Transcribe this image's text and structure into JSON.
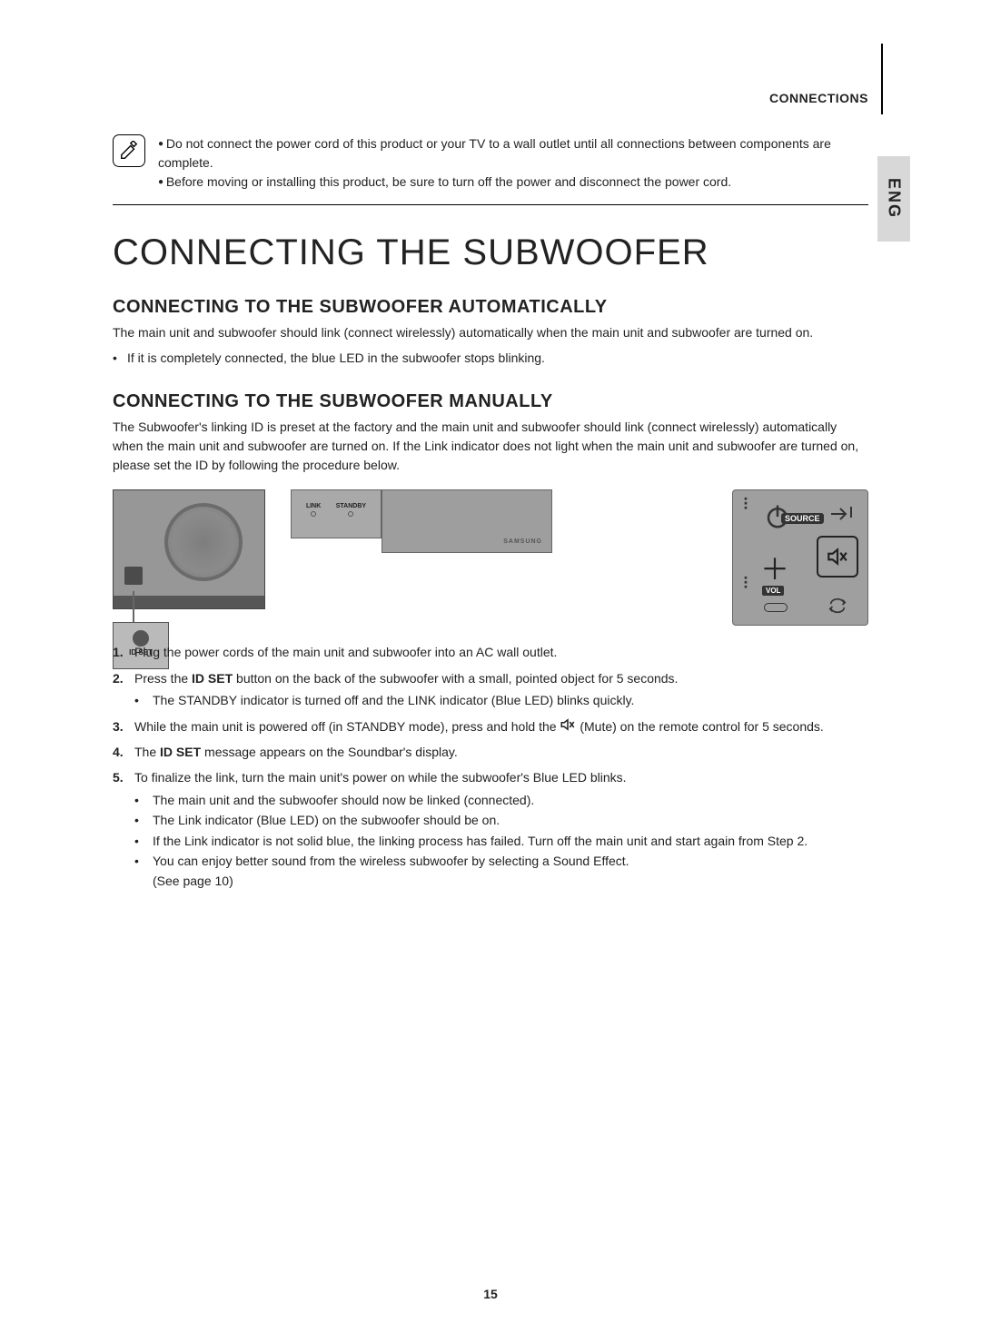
{
  "section_label": "CONNECTIONS",
  "side_tab": "ENG",
  "note_icon_name": "pencil-note-icon",
  "notes": [
    "Do not connect the power cord of this product or your TV to a wall outlet until all connections between components are complete.",
    "Before moving or installing this product, be sure to turn off the power and disconnect the power cord."
  ],
  "title": "CONNECTING THE SUBWOOFER",
  "auto_heading": "CONNECTING TO THE SUBWOOFER AUTOMATICALLY",
  "auto_body": "The main unit and subwoofer should link (connect wirelessly) automatically when the main unit and subwoofer are turned on.",
  "auto_bullets": [
    "If it is completely connected, the blue LED in the subwoofer stops blinking."
  ],
  "manual_heading": "CONNECTING TO THE SUBWOOFER MANUALLY",
  "manual_body": "The Subwoofer's linking ID is preset at the factory and the main unit and subwoofer should link (connect wirelessly) automatically when the main unit and subwoofer are turned on. If the Link indicator does not light when the main unit and subwoofer are turned on, please set the ID by following the procedure below.",
  "figures": {
    "subwoofer": {
      "callout_label": "ID SET"
    },
    "soundbar_panel": {
      "link_label": "LINK",
      "standby_label": "STANDBY",
      "brand": "SAMSUNG"
    },
    "remote": {
      "source_label": "SOURCE",
      "vol_label": "VOL"
    }
  },
  "steps": [
    {
      "text": "Plug the power cords of the main unit and subwoofer into an AC wall outlet."
    },
    {
      "prefix": "Press the ",
      "bold": "ID SET",
      "suffix": " button on the back of the subwoofer with a small, pointed object for 5 seconds.",
      "sub": [
        "The STANDBY indicator is turned off and the LINK indicator (Blue LED) blinks quickly."
      ]
    },
    {
      "prefix": "While the main unit is powered off (in STANDBY mode), press and hold the ",
      "icon": "mute-icon",
      "icon_after": " (Mute) on the remote control for 5 seconds."
    },
    {
      "prefix": "The ",
      "bold": "ID SET",
      "suffix": " message appears on the Soundbar's display."
    },
    {
      "text": "To finalize the link, turn the main unit's power on while the subwoofer's Blue LED blinks.",
      "sub": [
        "The main unit and the subwoofer should now be linked (connected).",
        "The Link indicator (Blue LED) on the subwoofer should be on.",
        "If the Link indicator is not solid blue, the linking process has failed. Turn off the main unit and start again from Step 2.",
        "You can enjoy better sound from the wireless subwoofer by selecting a Sound Effect.\n(See page 10)"
      ]
    }
  ],
  "page_number": "15",
  "colors": {
    "fig_bg": "#9e9e9e",
    "dark": "#555",
    "tab_bg": "#d8d8d8"
  }
}
